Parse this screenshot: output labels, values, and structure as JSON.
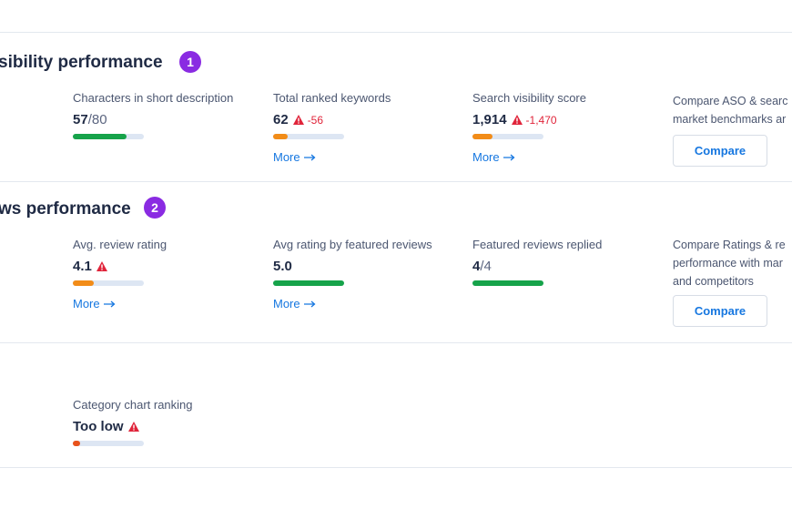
{
  "colors": {
    "green": "#16a34a",
    "orange": "#f28c18",
    "red_orange": "#e8521b",
    "badge": "#8a2be2",
    "link": "#1677e0",
    "alert": "#e0243a"
  },
  "icons": {
    "warning": "warning-triangle-icon",
    "arrow": "arrow-right-icon"
  },
  "sections": {
    "visibility": {
      "title": "sibility performance",
      "badge": "1",
      "metrics": [
        {
          "label": "Characters in short description",
          "value": "57",
          "suffix": "/80",
          "level": 0.75,
          "color": "green"
        },
        {
          "label": "Total ranked keywords",
          "value": "62",
          "delta": "-56",
          "warning": true,
          "level": 0.2,
          "color": "orange",
          "more": "More"
        },
        {
          "label": "Search visibility score",
          "value": "1,914",
          "delta": "-1,470",
          "warning": true,
          "level": 0.28,
          "color": "orange",
          "more": "More"
        }
      ],
      "compare": {
        "text": "Compare ASO & searc\nmarket benchmarks ar",
        "button": "Compare"
      }
    },
    "reviews": {
      "title": "ws performance",
      "badge": "2",
      "metrics": [
        {
          "label": "Avg. review rating",
          "value": "4.1",
          "warning": true,
          "level": 0.3,
          "color": "orange",
          "more": "More"
        },
        {
          "label": "Avg rating by featured reviews",
          "value": "5.0",
          "level": 1.0,
          "color": "green",
          "more": "More"
        },
        {
          "label": "Featured reviews replied",
          "value": "4",
          "suffix": "/4",
          "level": 1.0,
          "color": "green"
        }
      ],
      "compare": {
        "text": "Compare Ratings & re\nperformance with mar\nand competitors",
        "button": "Compare"
      }
    },
    "ranking": {
      "metrics": [
        {
          "label": "Category chart ranking",
          "value": "Too low",
          "warning": true,
          "level": 0.1,
          "color": "red_orange"
        }
      ]
    }
  }
}
